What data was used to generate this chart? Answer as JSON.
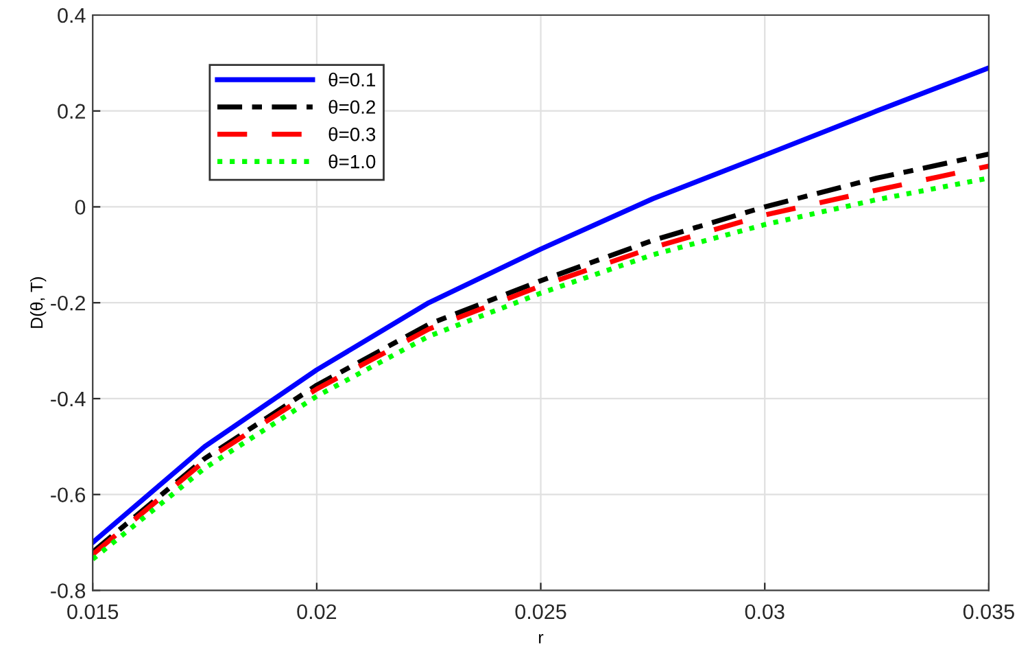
{
  "chart_data": {
    "type": "line",
    "xlabel": "r",
    "ylabel": "D(θ, T)",
    "x": [
      0.015,
      0.0175,
      0.02,
      0.0225,
      0.025,
      0.0275,
      0.03,
      0.0325,
      0.035
    ],
    "series": [
      {
        "name": "θ=0.1",
        "color": "#0000ff",
        "line_style": "solid",
        "values": [
          -0.7,
          -0.5,
          -0.34,
          -0.2,
          -0.088,
          0.017,
          0.108,
          0.2,
          0.29
        ]
      },
      {
        "name": "θ=0.2",
        "color": "#000000",
        "line_style": "dashdot",
        "values": [
          -0.72,
          -0.525,
          -0.372,
          -0.245,
          -0.154,
          -0.07,
          0.0,
          0.06,
          0.11
        ]
      },
      {
        "name": "θ=0.3",
        "color": "#ff0000",
        "line_style": "dashed",
        "values": [
          -0.725,
          -0.53,
          -0.38,
          -0.255,
          -0.165,
          -0.085,
          -0.017,
          0.035,
          0.085
        ]
      },
      {
        "name": "θ=1.0",
        "color": "#00ff00",
        "line_style": "dotted",
        "values": [
          -0.735,
          -0.545,
          -0.395,
          -0.27,
          -0.18,
          -0.1,
          -0.037,
          0.015,
          0.06
        ]
      }
    ],
    "xlim": [
      0.015,
      0.035
    ],
    "xticks": [
      0.015,
      0.02,
      0.025,
      0.03,
      0.035
    ],
    "ylim": [
      -0.8,
      0.4
    ],
    "yticks": [
      -0.8,
      -0.6,
      -0.4,
      -0.2,
      0,
      0.2,
      0.4
    ],
    "grid": true,
    "legend": "top left",
    "marker": "none"
  }
}
